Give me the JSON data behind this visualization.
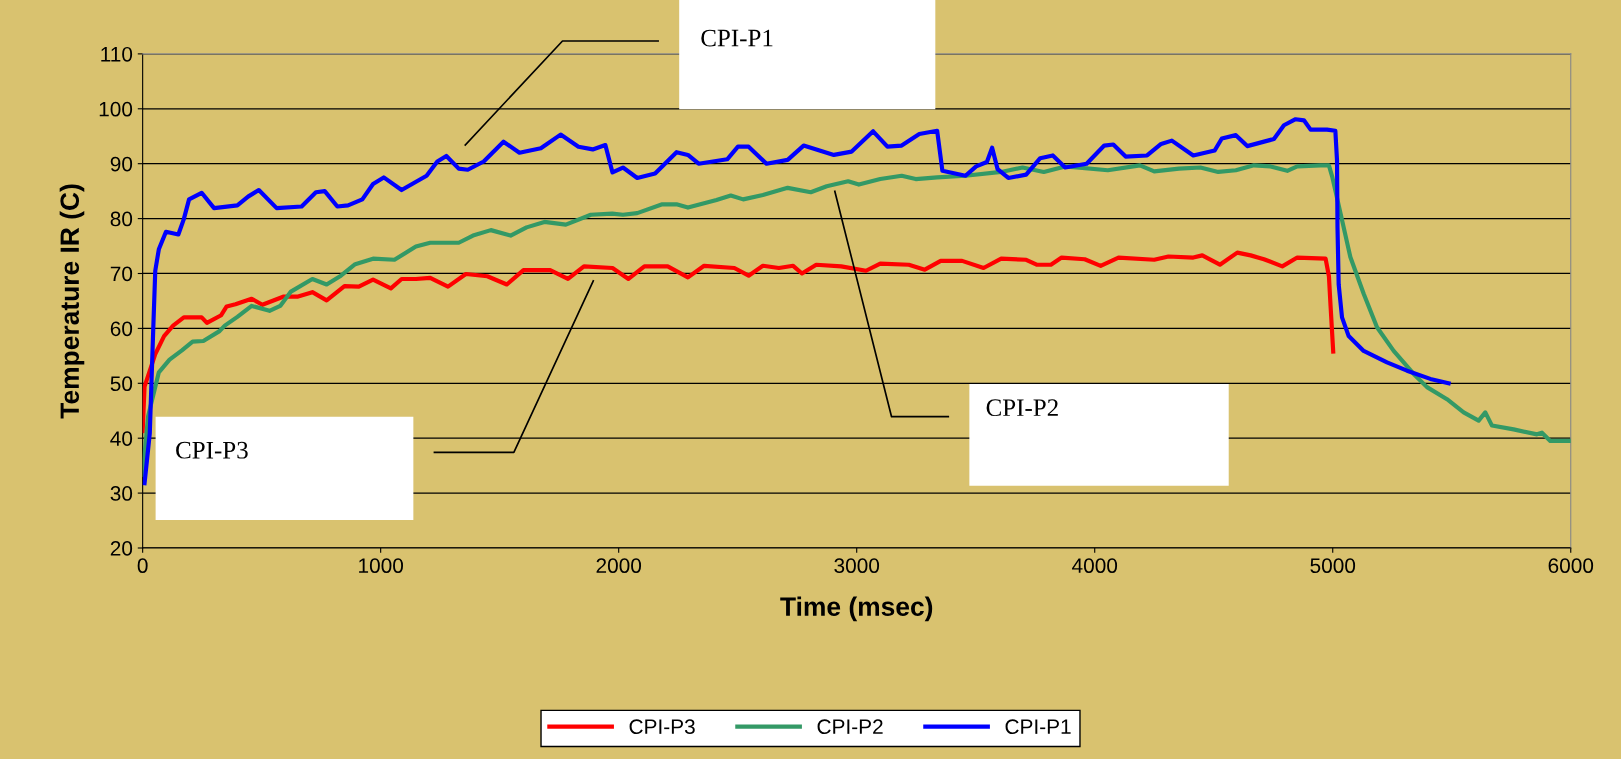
{
  "chart_data": {
    "type": "line",
    "xlabel": "Time (msec)",
    "ylabel": "Temperature IR (C)",
    "xlim": [
      0,
      6000
    ],
    "xticks": [
      0,
      1000,
      2000,
      3000,
      4000,
      5000,
      6000
    ],
    "ylim": [
      20,
      110
    ],
    "yticks": [
      20,
      30,
      40,
      50,
      60,
      70,
      80,
      90,
      100,
      110
    ],
    "grid": "y",
    "legend": "bottom",
    "marker": "none",
    "line_style": "solid",
    "annotations": [
      "CPI-P1",
      "CPI-P2",
      "CPI-P3"
    ],
    "series": [
      {
        "name": "CPI-P3",
        "color": "#ff0000",
        "x": [
          0,
          8,
          53,
          90,
          128,
          173,
          248,
          270,
          330,
          353,
          390,
          458,
          503,
          593,
          653,
          713,
          773,
          848,
          908,
          968,
          1043,
          1088,
          1148,
          1208,
          1283,
          1358,
          1448,
          1530,
          1600,
          1712,
          1787,
          1854,
          1974,
          2041,
          2108,
          2206,
          2291,
          2359,
          2486,
          2546,
          2606,
          2673,
          2733,
          2770,
          2830,
          2935,
          3039,
          3099,
          3219,
          3286,
          3353,
          3443,
          3533,
          3607,
          3712,
          3756,
          3816,
          3861,
          3958,
          4025,
          4100,
          4250,
          4310,
          4414,
          4452,
          4526,
          4599,
          4655,
          4711,
          4788,
          4851,
          4970,
          4984,
          4991,
          5002
        ],
        "values": [
          41.3,
          49.4,
          55.3,
          58.6,
          60.5,
          62,
          62,
          61,
          62.4,
          64,
          64.4,
          65.4,
          64.3,
          65.8,
          65.8,
          66.6,
          65.1,
          67.7,
          67.6,
          68.9,
          67.3,
          69,
          69,
          69.2,
          67.6,
          69.9,
          69.5,
          68,
          70.6,
          70.6,
          69,
          71.3,
          71,
          69,
          71.3,
          71.3,
          69.3,
          71.4,
          71,
          69.6,
          71.4,
          71,
          71.4,
          70,
          71.6,
          71.3,
          70.5,
          71.8,
          71.6,
          70.7,
          72.3,
          72.3,
          71,
          72.7,
          72.5,
          71.6,
          71.6,
          72.9,
          72.6,
          71.4,
          72.9,
          72.5,
          73.1,
          72.9,
          73.3,
          71.6,
          73.8,
          73.3,
          72.6,
          71.3,
          72.9,
          72.7,
          69.5,
          64,
          55.8
        ]
      },
      {
        "name": "CPI-P2",
        "color": "#339966",
        "x": [
          0,
          23,
          68,
          113,
          165,
          210,
          255,
          323,
          345,
          398,
          458,
          533,
          578,
          623,
          713,
          773,
          833,
          893,
          968,
          1058,
          1148,
          1208,
          1328,
          1388,
          1463,
          1546,
          1613,
          1688,
          1778,
          1883,
          1973,
          2018,
          2078,
          2183,
          2243,
          2291,
          2411,
          2471,
          2523,
          2606,
          2710,
          2807,
          2874,
          2964,
          3009,
          3099,
          3189,
          3248,
          3338,
          3457,
          3607,
          3697,
          3786,
          3876,
          4055,
          4190,
          4250,
          4354,
          4444,
          4519,
          4593,
          4669,
          4739,
          4809,
          4851,
          4949,
          4984,
          4998,
          5033,
          5074,
          5130,
          5186,
          5256,
          5340,
          5396,
          5480,
          5550,
          5613,
          5641,
          5669,
          5760,
          5858,
          5879,
          5914,
          6000
        ],
        "values": [
          33.3,
          44,
          52,
          54.3,
          56,
          57.6,
          57.7,
          59.5,
          60.5,
          62.1,
          64.1,
          63.2,
          64.1,
          66.7,
          69,
          68,
          69.6,
          71.7,
          72.7,
          72.5,
          74.9,
          75.6,
          75.6,
          76.9,
          77.9,
          76.9,
          78.4,
          79.4,
          78.9,
          80.7,
          80.9,
          80.7,
          81,
          82.6,
          82.6,
          82,
          83.4,
          84.2,
          83.5,
          84.3,
          85.6,
          84.8,
          85.9,
          86.8,
          86.2,
          87.2,
          87.8,
          87.2,
          87.5,
          87.8,
          88.5,
          89.3,
          88.5,
          89.5,
          88.8,
          89.7,
          88.6,
          89.1,
          89.3,
          88.5,
          88.8,
          89.7,
          89.5,
          88.7,
          89.5,
          89.7,
          89.7,
          87.6,
          80.9,
          73,
          66.3,
          60.2,
          55.9,
          51.7,
          49.3,
          47.1,
          44.7,
          43.2,
          44.7,
          42.3,
          41.6,
          40.7,
          41,
          39.5,
          39.5
        ]
      },
      {
        "name": "CPI-P1",
        "color": "#0000ff",
        "x": [
          8,
          30,
          45,
          53,
          68,
          98,
          150,
          173,
          195,
          248,
          300,
          398,
          443,
          488,
          563,
          668,
          728,
          765,
          818,
          863,
          923,
          968,
          1013,
          1088,
          1193,
          1238,
          1276,
          1328,
          1366,
          1433,
          1516,
          1583,
          1673,
          1756,
          1831,
          1891,
          1944,
          1974,
          2018,
          2078,
          2153,
          2243,
          2291,
          2336,
          2456,
          2501,
          2546,
          2621,
          2710,
          2777,
          2904,
          2979,
          3069,
          3129,
          3189,
          3263,
          3338,
          3360,
          3457,
          3502,
          3547,
          3569,
          3592,
          3637,
          3712,
          3771,
          3824,
          3876,
          3966,
          4040,
          4078,
          4130,
          4220,
          4279,
          4324,
          4414,
          4504,
          4534,
          4593,
          4641,
          4753,
          4795,
          4844,
          4879,
          4907,
          4976,
          5011,
          5018,
          5020,
          5025,
          5039,
          5067,
          5130,
          5228,
          5312,
          5410,
          5487
        ],
        "values": [
          31.8,
          40.9,
          60.5,
          70.5,
          74.4,
          77.6,
          77.1,
          79.9,
          83.5,
          84.7,
          81.9,
          82.4,
          84,
          85.2,
          81.9,
          82.2,
          84.8,
          85,
          82.2,
          82.4,
          83.5,
          86.3,
          87.5,
          85.2,
          87.8,
          90.4,
          91.4,
          89.1,
          88.9,
          90.4,
          94,
          92,
          92.8,
          95.3,
          93.1,
          92.6,
          93.4,
          88.4,
          89.3,
          87.4,
          88.2,
          92.1,
          91.6,
          90,
          90.8,
          93.1,
          93.1,
          90,
          90.7,
          93.3,
          91.6,
          92.2,
          95.9,
          93.1,
          93.3,
          95.4,
          96,
          88.7,
          87.8,
          89.5,
          90.3,
          92.9,
          89,
          87.4,
          88,
          91,
          91.5,
          89.3,
          90,
          93.3,
          93.5,
          91.3,
          91.5,
          93.6,
          94.2,
          91.5,
          92.4,
          94.6,
          95.2,
          93.2,
          94.5,
          97,
          98.1,
          97.9,
          96.2,
          96.2,
          96,
          90.6,
          78.4,
          68,
          62,
          58.6,
          55.9,
          53.8,
          52.3,
          50.8,
          50
        ]
      }
    ]
  }
}
